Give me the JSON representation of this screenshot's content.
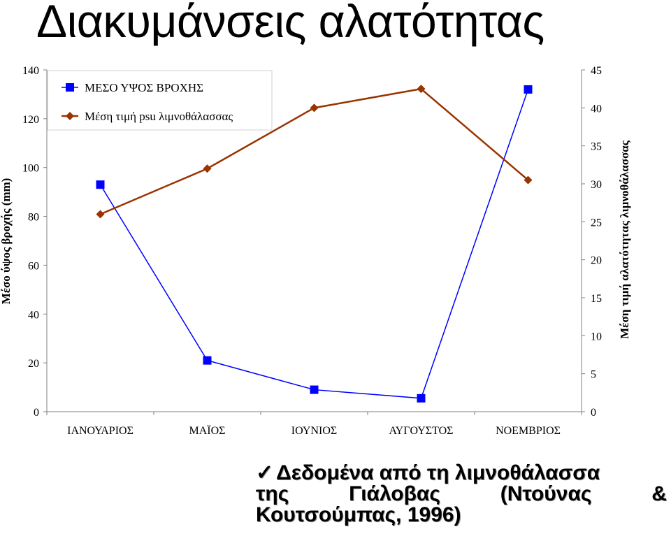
{
  "page_title": "Διακυμάνσεις αλατότητας",
  "chart_data": {
    "type": "line",
    "categories": [
      "ΙΑΝΟΥΑΡΙΟΣ",
      "ΜΑΪΟΣ",
      "ΙΟΥΝΙΟΣ",
      "ΑΥΓΟΥΣΤΟΣ",
      "ΝΟΕΜΒΡΙΟΣ"
    ],
    "series": [
      {
        "name": "ΜΕΣΟ ΥΨΟΣ ΒΡΟΧΗΣ",
        "axis": "left",
        "marker": "square",
        "color": "#0000ff",
        "values": [
          93,
          21,
          9,
          5.5,
          132
        ]
      },
      {
        "name": "Μέση τιμή psu λιμνοθάλασσας",
        "axis": "right",
        "marker": "diamond",
        "color": "#993300",
        "values": [
          26,
          32,
          40,
          42.5,
          30.5
        ]
      }
    ],
    "ylabel": "Μέσο ύψος βροχής (mm)",
    "ylim": [
      0,
      140
    ],
    "yticks": [
      "0",
      "20",
      "40",
      "60",
      "80",
      "100",
      "120",
      "140"
    ],
    "y2label": "Μέση τιμή αλατότητας λιμνοθάλασσας",
    "y2lim": [
      0,
      45
    ],
    "y2ticks": [
      "0",
      "5",
      "10",
      "15",
      "20",
      "25",
      "30",
      "35",
      "40",
      "45"
    ],
    "legend_position": "top-left",
    "grid": false
  },
  "source_note": {
    "check_icon": "✓",
    "line1": "Δεδομένα από τη λιμνοθάλασσα",
    "line2_words": [
      "της",
      "Γιάλοβας",
      "(Ντούνας",
      "&"
    ],
    "line3": "Κουτσούμπας, 1996)"
  }
}
